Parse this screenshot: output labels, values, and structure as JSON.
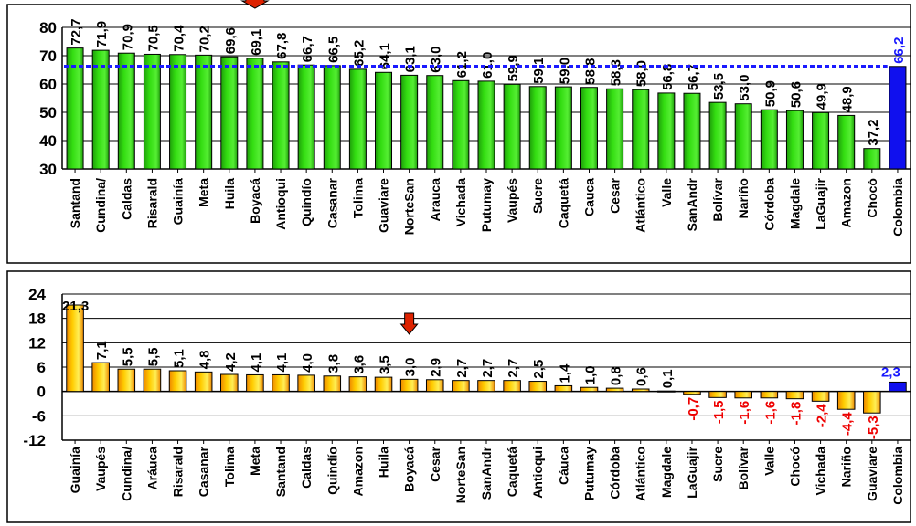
{
  "chart_data": [
    {
      "type": "bar",
      "ylim": [
        30,
        80
      ],
      "yticks": [
        "30",
        "40",
        "50",
        "60",
        "70",
        "80"
      ],
      "categories": [
        "Santand",
        "Cundina/",
        "Caldas",
        "Risarald",
        "Guainía",
        "Meta",
        "Huila",
        "Boyacá",
        "Antioqui",
        "Quindío",
        "Casanar",
        "Tolima",
        "Guaviare",
        "NorteSan",
        "Arauca",
        "Vichada",
        "Putumay",
        "Vaupés",
        "Sucre",
        "Caquetá",
        "Cauca",
        "Cesar",
        "Atlántico",
        "Valle",
        "SanAndr",
        "Bolívar",
        "Nariño",
        "Córdoba",
        "Magdale",
        "LaGuajir",
        "Amazon",
        "Chocó",
        "Colombia"
      ],
      "values": [
        72.7,
        71.9,
        70.9,
        70.5,
        70.4,
        70.2,
        69.6,
        69.1,
        67.8,
        66.7,
        66.5,
        65.2,
        64.1,
        63.1,
        63.0,
        61.2,
        61.0,
        59.9,
        59.1,
        59.0,
        58.8,
        58.3,
        58.0,
        56.8,
        56.7,
        53.5,
        53.0,
        50.9,
        50.6,
        49.9,
        48.9,
        37.2,
        66.2
      ],
      "value_labels": [
        "72,7",
        "71,9",
        "70,9",
        "70,5",
        "70,4",
        "70,2",
        "69,6",
        "69,1",
        "67,8",
        "66,7",
        "66,5",
        "65,2",
        "64,1",
        "63,1",
        "63,0",
        "61,2",
        "61,0",
        "59,9",
        "59,1",
        "59,0",
        "58,8",
        "58,3",
        "58,0",
        "56,8",
        "56,7",
        "53,5",
        "53,0",
        "50,9",
        "50,6",
        "49,9",
        "48,9",
        "37,2",
        "66,2"
      ],
      "reference_line": 66.2,
      "highlight": "Boyacá",
      "grid": true
    },
    {
      "type": "bar",
      "ylim": [
        -12,
        24
      ],
      "yticks": [
        "-12",
        "-6",
        "0",
        "6",
        "12",
        "18",
        "24"
      ],
      "categories": [
        "Guainía",
        "Vaupés",
        "Cundina/",
        "Aráuca",
        "Risarald",
        "Casanar",
        "Tolima",
        "Meta",
        "Santand",
        "Caldas",
        "Quindío",
        "Amazon",
        "Huila",
        "Boyacá",
        "Cesar",
        "NorteSan",
        "SanAndr",
        "Caquetá",
        "Antioqui",
        "Cáuca",
        "Putumay",
        "Córdoba",
        "Atlántico",
        "Magdale",
        "LaGuajir",
        "Sucre",
        "Bolívar",
        "Valle",
        "Chocó",
        "Vichada",
        "Nariño",
        "Guaviare",
        "Colombia"
      ],
      "values": [
        21.3,
        7.1,
        5.5,
        5.5,
        5.1,
        4.8,
        4.2,
        4.1,
        4.1,
        4.0,
        3.8,
        3.6,
        3.5,
        3.0,
        2.9,
        2.7,
        2.7,
        2.7,
        2.5,
        1.4,
        1.0,
        0.8,
        0.6,
        0.1,
        -0.7,
        -1.5,
        -1.6,
        -1.6,
        -1.8,
        -2.4,
        -4.4,
        -5.3,
        2.3
      ],
      "value_labels": [
        "21,3",
        "7,1",
        "5,5",
        "5,5",
        "5,1",
        "4,8",
        "4,2",
        "4,1",
        "4,1",
        "4,0",
        "3,8",
        "3,6",
        "3,5",
        "3,0",
        "2,9",
        "2,7",
        "2,7",
        "2,7",
        "2,5",
        "1,4",
        "1,0",
        "0,8",
        "0,6",
        "0,1",
        "-0,7",
        "-1,5",
        "-1,6",
        "-1,6",
        "-1,8",
        "-2,4",
        "-4,4",
        "-5,3",
        "2,3"
      ],
      "highlight": "Boyacá",
      "grid": true
    }
  ],
  "colors": {
    "bar_green": "#33dd11",
    "bar_orange": "#ffcc00",
    "bar_total": "#1010ee",
    "reference_line": "#1a1aff",
    "negative_label": "#ee0000",
    "total_label": "#1a1aff",
    "marker_arrow": "#dd2200"
  }
}
